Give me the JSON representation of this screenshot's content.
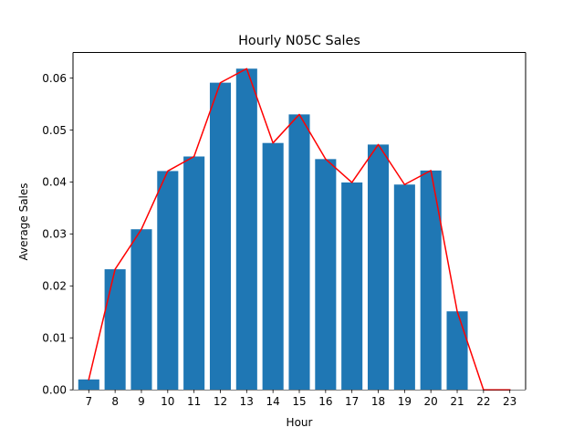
{
  "chart_data": {
    "type": "bar",
    "title": "Hourly N05C Sales",
    "xlabel": "Hour",
    "ylabel": "Average Sales",
    "categories": [
      "7",
      "8",
      "9",
      "10",
      "11",
      "12",
      "13",
      "14",
      "15",
      "16",
      "17",
      "18",
      "19",
      "20",
      "21",
      "22",
      "23"
    ],
    "series": [
      {
        "kind": "bar",
        "color": "#1f77b4",
        "values": [
          0.002,
          0.0232,
          0.0309,
          0.0421,
          0.0449,
          0.0591,
          0.0618,
          0.0475,
          0.053,
          0.0444,
          0.0399,
          0.0472,
          0.0395,
          0.0422,
          0.0151,
          0.0,
          0.0
        ]
      },
      {
        "kind": "line",
        "color": "#ff0000",
        "values": [
          0.002,
          0.0232,
          0.0309,
          0.0421,
          0.0449,
          0.0591,
          0.0618,
          0.0475,
          0.053,
          0.0444,
          0.0399,
          0.0472,
          0.0395,
          0.0422,
          0.0151,
          0.0,
          0.0
        ]
      }
    ],
    "ylim": [
      0,
      0.0649
    ],
    "yticks": [
      "0.00",
      "0.01",
      "0.02",
      "0.03",
      "0.04",
      "0.05",
      "0.06"
    ],
    "grid": false,
    "legend": "none"
  }
}
